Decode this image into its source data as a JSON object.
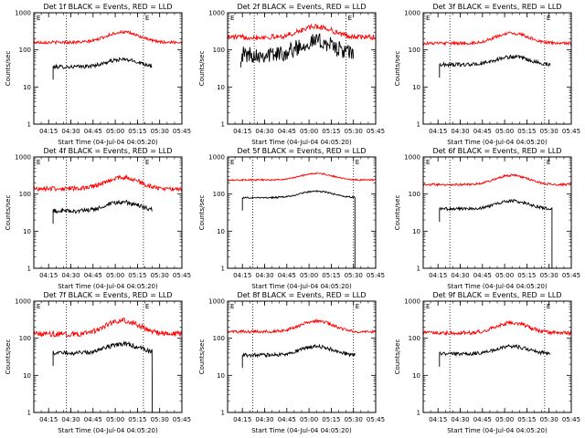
{
  "chart_data": [
    {
      "type": "line",
      "title": "Det 1f BLACK = Events, RED = LLD",
      "xlabel": "Start Time (04-Jul-04 04:05:20)",
      "ylabel": "Counts/sec",
      "y_scale": "log",
      "ylim": [
        1,
        1000
      ],
      "xtick_labels": [
        "04:15",
        "04:30",
        "04:45",
        "05:00",
        "05:15",
        "05:30",
        "05:45"
      ],
      "yticks": [
        "1",
        "10",
        "100",
        "1000"
      ],
      "markers": [
        "E",
        "E"
      ],
      "vlines": [
        "04:27",
        "05:19"
      ],
      "series": [
        {
          "name": "BLACK = Events",
          "color": "#000000",
          "start": "04:18",
          "end": "05:25",
          "base": 35,
          "bump": 55,
          "noise": 0.05,
          "dropout": false
        },
        {
          "name": "RED = LLD",
          "color": "#ff0000",
          "start": "04:05",
          "end": "05:45",
          "base": 160,
          "bump": 300,
          "noise": 0.04
        }
      ]
    },
    {
      "type": "line",
      "title": "Det 2f BLACK = Events, RED = LLD",
      "xlabel": "Start Time (04-Jul-04 04:05:20)",
      "ylabel": "Counts/sec",
      "y_scale": "log",
      "ylim": [
        1,
        1000
      ],
      "xtick_labels": [
        "04:15",
        "04:30",
        "04:45",
        "05:00",
        "05:15",
        "05:30",
        "05:45"
      ],
      "yticks": [
        "1",
        "10",
        "100",
        "1000"
      ],
      "markers": [
        "E",
        "E"
      ],
      "vlines": [
        "04:23",
        "05:25"
      ],
      "series": [
        {
          "name": "BLACK = Events",
          "color": "#000000",
          "start": "04:14",
          "end": "05:30",
          "base": 75,
          "bump": 170,
          "noise": 0.22,
          "dropout": false
        },
        {
          "name": "RED = LLD",
          "color": "#ff0000",
          "start": "04:05",
          "end": "05:45",
          "base": 220,
          "bump": 420,
          "noise": 0.07
        }
      ]
    },
    {
      "type": "line",
      "title": "Det 3f BLACK = Events, RED = LLD",
      "xlabel": "Start Time (04-Jul-04 04:05:20)",
      "ylabel": "Counts/sec",
      "y_scale": "log",
      "ylim": [
        1,
        1000
      ],
      "xtick_labels": [
        "04:15",
        "04:30",
        "04:45",
        "05:00",
        "05:15",
        "05:30",
        "05:45"
      ],
      "yticks": [
        "1",
        "10",
        "100",
        "1000"
      ],
      "markers": [
        "E",
        "E"
      ],
      "vlines": [
        "04:23",
        "05:27"
      ],
      "series": [
        {
          "name": "BLACK = Events",
          "color": "#000000",
          "start": "04:16",
          "end": "05:31",
          "base": 40,
          "bump": 65,
          "noise": 0.05,
          "dropout": false
        },
        {
          "name": "RED = LLD",
          "color": "#ff0000",
          "start": "04:05",
          "end": "05:45",
          "base": 150,
          "bump": 280,
          "noise": 0.04
        }
      ]
    },
    {
      "type": "line",
      "title": "Det 4f BLACK = Events, RED = LLD",
      "xlabel": "Start Time (04-Jul-04 04:05:20)",
      "ylabel": "Counts/sec",
      "y_scale": "log",
      "ylim": [
        1,
        1000
      ],
      "xtick_labels": [
        "04:15",
        "04:30",
        "04:45",
        "05:00",
        "05:15",
        "05:30",
        "05:45"
      ],
      "yticks": [
        "1",
        "10",
        "100",
        "1000"
      ],
      "markers": [
        "E",
        "E"
      ],
      "vlines": [
        "04:27",
        "05:19"
      ],
      "series": [
        {
          "name": "BLACK = Events",
          "color": "#000000",
          "start": "04:18",
          "end": "05:25",
          "base": 35,
          "bump": 60,
          "noise": 0.06,
          "dropout": false
        },
        {
          "name": "RED = LLD",
          "color": "#ff0000",
          "start": "04:05",
          "end": "05:45",
          "base": 140,
          "bump": 280,
          "noise": 0.06
        }
      ]
    },
    {
      "type": "line",
      "title": "Det 5f BLACK = Events, RED = LLD",
      "xlabel": "Start Time (04-Jul-04 04:05:20)",
      "ylabel": "Counts/sec",
      "y_scale": "log",
      "ylim": [
        1,
        1000
      ],
      "xtick_labels": [
        "04:15",
        "04:30",
        "04:45",
        "05:00",
        "05:15",
        "05:30",
        "05:45"
      ],
      "yticks": [
        "1",
        "10",
        "100",
        "1000"
      ],
      "markers": [
        "E",
        "E"
      ],
      "vlines": [
        "04:22",
        "05:30"
      ],
      "series": [
        {
          "name": "BLACK = Events",
          "color": "#000000",
          "start": "04:15",
          "end": "05:31",
          "base": 80,
          "bump": 120,
          "noise": 0.02,
          "dropout": true
        },
        {
          "name": "RED = LLD",
          "color": "#ff0000",
          "start": "04:05",
          "end": "05:45",
          "base": 240,
          "bump": 360,
          "noise": 0.02
        }
      ]
    },
    {
      "type": "line",
      "title": "Det 6f BLACK = Events, RED = LLD",
      "xlabel": "Start Time (04-Jul-04 04:05:20)",
      "ylabel": "Counts/sec",
      "y_scale": "log",
      "ylim": [
        1,
        1000
      ],
      "xtick_labels": [
        "04:15",
        "04:30",
        "04:45",
        "05:00",
        "05:15",
        "05:30",
        "05:45"
      ],
      "yticks": [
        "1",
        "10",
        "100",
        "1000"
      ],
      "markers": [
        "E",
        "E"
      ],
      "vlines": [
        "04:23",
        "05:27"
      ],
      "series": [
        {
          "name": "BLACK = Events",
          "color": "#000000",
          "start": "04:16",
          "end": "05:32",
          "base": 40,
          "bump": 65,
          "noise": 0.04,
          "dropout": true
        },
        {
          "name": "RED = LLD",
          "color": "#ff0000",
          "start": "04:05",
          "end": "05:45",
          "base": 180,
          "bump": 320,
          "noise": 0.03
        }
      ]
    },
    {
      "type": "line",
      "title": "Det 7f BLACK = Events, RED = LLD",
      "xlabel": "Start Time (04-Jul-04 04:05:20)",
      "ylabel": "Counts/sec",
      "y_scale": "log",
      "ylim": [
        1,
        1000
      ],
      "xtick_labels": [
        "04:15",
        "04:30",
        "04:45",
        "05:00",
        "05:15",
        "05:30",
        "05:45"
      ],
      "yticks": [
        "1",
        "10",
        "100",
        "1000"
      ],
      "markers": [
        "E",
        "E"
      ],
      "vlines": [
        "04:27",
        "05:19"
      ],
      "series": [
        {
          "name": "BLACK = Events",
          "color": "#000000",
          "start": "04:18",
          "end": "05:25",
          "base": 40,
          "bump": 70,
          "noise": 0.06,
          "dropout": true
        },
        {
          "name": "RED = LLD",
          "color": "#ff0000",
          "start": "04:05",
          "end": "05:45",
          "base": 130,
          "bump": 300,
          "noise": 0.07
        }
      ]
    },
    {
      "type": "line",
      "title": "Det 8f BLACK = Events, RED = LLD",
      "xlabel": "Start Time (04-Jul-04 04:05:20)",
      "ylabel": "Counts/sec",
      "y_scale": "log",
      "ylim": [
        1,
        1000
      ],
      "xtick_labels": [
        "04:15",
        "04:30",
        "04:45",
        "05:00",
        "05:15",
        "05:30",
        "05:45"
      ],
      "yticks": [
        "1",
        "10",
        "100",
        "1000"
      ],
      "markers": [
        "E",
        "E"
      ],
      "vlines": [
        "04:22",
        "05:30"
      ],
      "series": [
        {
          "name": "BLACK = Events",
          "color": "#000000",
          "start": "04:15",
          "end": "05:31",
          "base": 35,
          "bump": 60,
          "noise": 0.05,
          "dropout": false
        },
        {
          "name": "RED = LLD",
          "color": "#ff0000",
          "start": "04:05",
          "end": "05:45",
          "base": 150,
          "bump": 290,
          "noise": 0.04
        }
      ]
    },
    {
      "type": "line",
      "title": "Det 9f BLACK = Events, RED = LLD",
      "xlabel": "Start Time (04-Jul-04 04:05:20)",
      "ylabel": "Counts/sec",
      "y_scale": "log",
      "ylim": [
        1,
        1000
      ],
      "xtick_labels": [
        "04:15",
        "04:30",
        "04:45",
        "05:00",
        "05:15",
        "05:30",
        "05:45"
      ],
      "yticks": [
        "1",
        "10",
        "100",
        "1000"
      ],
      "markers": [
        "E",
        "E"
      ],
      "vlines": [
        "04:23",
        "05:27"
      ],
      "series": [
        {
          "name": "BLACK = Events",
          "color": "#000000",
          "start": "04:16",
          "end": "05:31",
          "base": 38,
          "bump": 60,
          "noise": 0.05,
          "dropout": false
        },
        {
          "name": "RED = LLD",
          "color": "#ff0000",
          "start": "04:05",
          "end": "05:45",
          "base": 140,
          "bump": 260,
          "noise": 0.05
        }
      ]
    }
  ]
}
